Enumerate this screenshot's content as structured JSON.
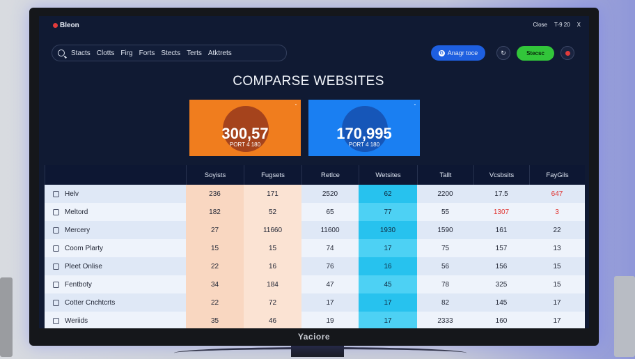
{
  "app": {
    "name": "Bleon"
  },
  "window_controls": [
    "Close",
    "T-9 20",
    "X"
  ],
  "nav": {
    "items": [
      "Stacts",
      "Clotts",
      "Firg",
      "Forts",
      "Stects",
      "Terts",
      "Atktrets"
    ]
  },
  "header_buttons": {
    "blue_label": "Anagr toce",
    "blue_icon_letter": "G",
    "green_label": "Stecsc"
  },
  "page_title": "COMPARSE WEBSITES",
  "cards": [
    {
      "value": "300,57",
      "sub": "PORT 4 180",
      "color": "#f07d1e"
    },
    {
      "value": "170,995",
      "sub": "PORT 4 180",
      "color": "#1a7ff2"
    }
  ],
  "table": {
    "columns": [
      "",
      "Soyists",
      "Fugsets",
      "Retlce",
      "Wetsites",
      "Tallt",
      "Vcsbsits",
      "FayGils"
    ],
    "rows": [
      {
        "name": "Helv",
        "values": [
          "236",
          "171",
          "2520",
          "62",
          "2200",
          "17.5",
          "647"
        ],
        "red": [
          6
        ]
      },
      {
        "name": "Meltord",
        "values": [
          "182",
          "52",
          "65",
          "77",
          "55",
          "1307",
          "3"
        ],
        "red": [
          5,
          6
        ]
      },
      {
        "name": "Mercery",
        "values": [
          "27",
          "11660",
          "11600",
          "1930",
          "1590",
          "161",
          "22"
        ],
        "red": []
      },
      {
        "name": "Coom Plarty",
        "values": [
          "15",
          "15",
          "74",
          "17",
          "75",
          "157",
          "13"
        ],
        "red": []
      },
      {
        "name": "Pleet Onlise",
        "values": [
          "22",
          "16",
          "76",
          "16",
          "56",
          "156",
          "15"
        ],
        "red": []
      },
      {
        "name": "Fentboty",
        "values": [
          "34",
          "184",
          "47",
          "45",
          "78",
          "325",
          "15"
        ],
        "red": []
      },
      {
        "name": "Cotter Cnchtcrts",
        "values": [
          "22",
          "72",
          "17",
          "17",
          "82",
          "145",
          "17"
        ],
        "red": []
      },
      {
        "name": "Weriids",
        "values": [
          "35",
          "46",
          "19",
          "17",
          "2333",
          "160",
          "17"
        ],
        "red": []
      }
    ]
  },
  "monitor_brand": "Yaciore"
}
